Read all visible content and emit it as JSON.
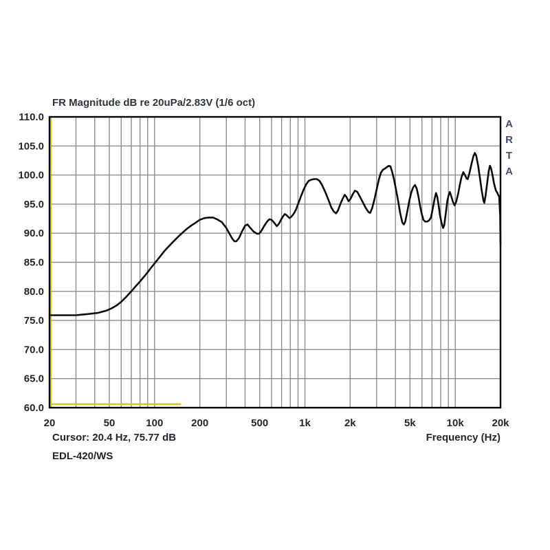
{
  "header": {
    "title": "FR Magnitude dB re 20uPa/2.83V (1/6 oct)"
  },
  "footer": {
    "cursor_readout": "Cursor: 20.4 Hz, 75.77 dB",
    "device_label": "EDL-420/WS",
    "x_axis_label": "Frequency (Hz)"
  },
  "watermark": {
    "text": "ARTA"
  },
  "chart_data": {
    "type": "line",
    "title": "FR Magnitude dB re 20uPa/2.83V (1/6 oct)",
    "xlabel": "Frequency (Hz)",
    "ylabel": "Magnitude (dB re 20uPa/2.83V)",
    "x_scale": "log",
    "xlim": [
      20,
      20000
    ],
    "ylim": [
      60,
      110
    ],
    "grid": true,
    "x_gridlines": [
      20,
      30,
      40,
      50,
      60,
      70,
      80,
      90,
      100,
      200,
      300,
      400,
      500,
      600,
      700,
      800,
      900,
      1000,
      2000,
      3000,
      4000,
      5000,
      6000,
      7000,
      8000,
      9000,
      10000,
      20000
    ],
    "x_ticks": [
      {
        "f": 20,
        "label": "20"
      },
      {
        "f": 50,
        "label": "50"
      },
      {
        "f": 100,
        "label": "100"
      },
      {
        "f": 200,
        "label": "200"
      },
      {
        "f": 500,
        "label": "500"
      },
      {
        "f": 1000,
        "label": "1k"
      },
      {
        "f": 2000,
        "label": "2k"
      },
      {
        "f": 5000,
        "label": "5k"
      },
      {
        "f": 10000,
        "label": "10k"
      },
      {
        "f": 20000,
        "label": "20k"
      }
    ],
    "y_ticks": [
      {
        "v": 110,
        "label": "110.0"
      },
      {
        "v": 105,
        "label": "105.0"
      },
      {
        "v": 100,
        "label": "100.0"
      },
      {
        "v": 95,
        "label": "95.0"
      },
      {
        "v": 90,
        "label": "90.0"
      },
      {
        "v": 85,
        "label": "85.0"
      },
      {
        "v": 80,
        "label": "80.0"
      },
      {
        "v": 75,
        "label": "75.0"
      },
      {
        "v": 70,
        "label": "70.0"
      },
      {
        "v": 65,
        "label": "65.0"
      },
      {
        "v": 60,
        "label": "60.0"
      }
    ],
    "series": [
      {
        "name": "FR magnitude EDL-420/WS",
        "color": "#0b0b0b",
        "points": [
          [
            20,
            75.9
          ],
          [
            22,
            75.9
          ],
          [
            24,
            75.9
          ],
          [
            26,
            75.9
          ],
          [
            28,
            75.9
          ],
          [
            30,
            75.9
          ],
          [
            33,
            76.0
          ],
          [
            36,
            76.1
          ],
          [
            39,
            76.2
          ],
          [
            42,
            76.3
          ],
          [
            45,
            76.5
          ],
          [
            48,
            76.7
          ],
          [
            52,
            77.1
          ],
          [
            56,
            77.6
          ],
          [
            60,
            78.2
          ],
          [
            65,
            79.1
          ],
          [
            70,
            80.0
          ],
          [
            75,
            80.9
          ],
          [
            80,
            81.7
          ],
          [
            85,
            82.5
          ],
          [
            90,
            83.3
          ],
          [
            95,
            84.1
          ],
          [
            100,
            84.8
          ],
          [
            108,
            85.9
          ],
          [
            116,
            86.9
          ],
          [
            125,
            87.8
          ],
          [
            135,
            88.7
          ],
          [
            145,
            89.5
          ],
          [
            155,
            90.2
          ],
          [
            165,
            90.8
          ],
          [
            175,
            91.3
          ],
          [
            185,
            91.7
          ],
          [
            200,
            92.3
          ],
          [
            215,
            92.6
          ],
          [
            230,
            92.7
          ],
          [
            245,
            92.7
          ],
          [
            260,
            92.4
          ],
          [
            280,
            91.9
          ],
          [
            300,
            90.9
          ],
          [
            315,
            89.9
          ],
          [
            330,
            89.0
          ],
          [
            340,
            88.6
          ],
          [
            350,
            88.6
          ],
          [
            365,
            89.2
          ],
          [
            380,
            90.2
          ],
          [
            400,
            91.3
          ],
          [
            415,
            91.5
          ],
          [
            430,
            91.0
          ],
          [
            455,
            90.3
          ],
          [
            480,
            89.9
          ],
          [
            495,
            89.9
          ],
          [
            510,
            90.3
          ],
          [
            535,
            91.2
          ],
          [
            560,
            92.0
          ],
          [
            580,
            92.4
          ],
          [
            600,
            92.3
          ],
          [
            625,
            91.8
          ],
          [
            650,
            91.2
          ],
          [
            670,
            91.6
          ],
          [
            700,
            92.5
          ],
          [
            720,
            93.0
          ],
          [
            735,
            93.3
          ],
          [
            755,
            93.1
          ],
          [
            775,
            92.8
          ],
          [
            790,
            92.6
          ],
          [
            810,
            92.8
          ],
          [
            840,
            93.3
          ],
          [
            870,
            94.0
          ],
          [
            900,
            95.0
          ],
          [
            940,
            96.3
          ],
          [
            980,
            97.5
          ],
          [
            1020,
            98.4
          ],
          [
            1060,
            99.0
          ],
          [
            1100,
            99.2
          ],
          [
            1150,
            99.3
          ],
          [
            1200,
            99.3
          ],
          [
            1250,
            99.0
          ],
          [
            1300,
            98.3
          ],
          [
            1360,
            97.2
          ],
          [
            1430,
            95.8
          ],
          [
            1500,
            94.4
          ],
          [
            1560,
            93.7
          ],
          [
            1610,
            93.4
          ],
          [
            1660,
            93.9
          ],
          [
            1720,
            95.0
          ],
          [
            1780,
            95.9
          ],
          [
            1840,
            96.6
          ],
          [
            1890,
            96.2
          ],
          [
            1950,
            95.5
          ],
          [
            2010,
            95.9
          ],
          [
            2080,
            96.7
          ],
          [
            2150,
            97.3
          ],
          [
            2230,
            97.1
          ],
          [
            2320,
            96.3
          ],
          [
            2420,
            95.4
          ],
          [
            2530,
            94.4
          ],
          [
            2650,
            93.6
          ],
          [
            2720,
            93.5
          ],
          [
            2800,
            94.3
          ],
          [
            2900,
            95.8
          ],
          [
            3000,
            97.5
          ],
          [
            3100,
            99.2
          ],
          [
            3200,
            100.4
          ],
          [
            3300,
            100.9
          ],
          [
            3450,
            101.2
          ],
          [
            3600,
            101.6
          ],
          [
            3700,
            101.5
          ],
          [
            3800,
            100.6
          ],
          [
            3900,
            99.4
          ],
          [
            4000,
            98.0
          ],
          [
            4150,
            95.8
          ],
          [
            4300,
            93.5
          ],
          [
            4450,
            91.8
          ],
          [
            4550,
            91.5
          ],
          [
            4650,
            92.0
          ],
          [
            4800,
            93.8
          ],
          [
            4950,
            95.6
          ],
          [
            5100,
            97.0
          ],
          [
            5250,
            97.9
          ],
          [
            5400,
            98.3
          ],
          [
            5550,
            97.6
          ],
          [
            5700,
            96.2
          ],
          [
            5850,
            94.5
          ],
          [
            6000,
            93.2
          ],
          [
            6150,
            92.3
          ],
          [
            6300,
            92.0
          ],
          [
            6500,
            92.0
          ],
          [
            6700,
            92.2
          ],
          [
            6900,
            92.7
          ],
          [
            7100,
            94.3
          ],
          [
            7300,
            96.0
          ],
          [
            7450,
            96.9
          ],
          [
            7600,
            96.2
          ],
          [
            7750,
            94.8
          ],
          [
            7900,
            93.2
          ],
          [
            8100,
            91.8
          ],
          [
            8300,
            90.9
          ],
          [
            8450,
            91.4
          ],
          [
            8650,
            93.4
          ],
          [
            8850,
            95.5
          ],
          [
            9050,
            96.6
          ],
          [
            9200,
            97.1
          ],
          [
            9400,
            96.4
          ],
          [
            9650,
            95.4
          ],
          [
            9900,
            94.8
          ],
          [
            10150,
            95.4
          ],
          [
            10450,
            96.8
          ],
          [
            10750,
            98.4
          ],
          [
            11000,
            99.6
          ],
          [
            11300,
            100.5
          ],
          [
            11600,
            100.0
          ],
          [
            11900,
            99.4
          ],
          [
            12100,
            99.3
          ],
          [
            12400,
            100.2
          ],
          [
            12800,
            101.8
          ],
          [
            13200,
            103.2
          ],
          [
            13500,
            103.8
          ],
          [
            13800,
            103.3
          ],
          [
            14200,
            101.6
          ],
          [
            14600,
            99.5
          ],
          [
            15000,
            97.3
          ],
          [
            15400,
            95.6
          ],
          [
            15600,
            95.2
          ],
          [
            15900,
            96.4
          ],
          [
            16300,
            98.6
          ],
          [
            16700,
            100.7
          ],
          [
            17000,
            101.6
          ],
          [
            17300,
            101.2
          ],
          [
            17700,
            100.0
          ],
          [
            18100,
            98.6
          ],
          [
            18600,
            97.4
          ],
          [
            19000,
            97.0
          ],
          [
            19300,
            96.6
          ],
          [
            19600,
            96.3
          ],
          [
            19900,
            93.0
          ],
          [
            20000,
            88.0
          ]
        ]
      }
    ],
    "overlays": {
      "cursor": {
        "freq_hz": 20.4,
        "color": "#d3c72b"
      },
      "marker_segment": {
        "from_hz": 20,
        "to_hz": 150,
        "level_db": 60.6,
        "color": "#d3c72b"
      }
    },
    "colors": {
      "grid": "#8d8d8d",
      "frame": "#000000",
      "curve": "#0b0b0b",
      "cursor_yellow": "#d3c72b",
      "background": "#ffffff",
      "text": "#24262c",
      "accent_text": "#3e4d6e"
    },
    "smoothing": "1/6 oct",
    "legend_position": "none"
  }
}
